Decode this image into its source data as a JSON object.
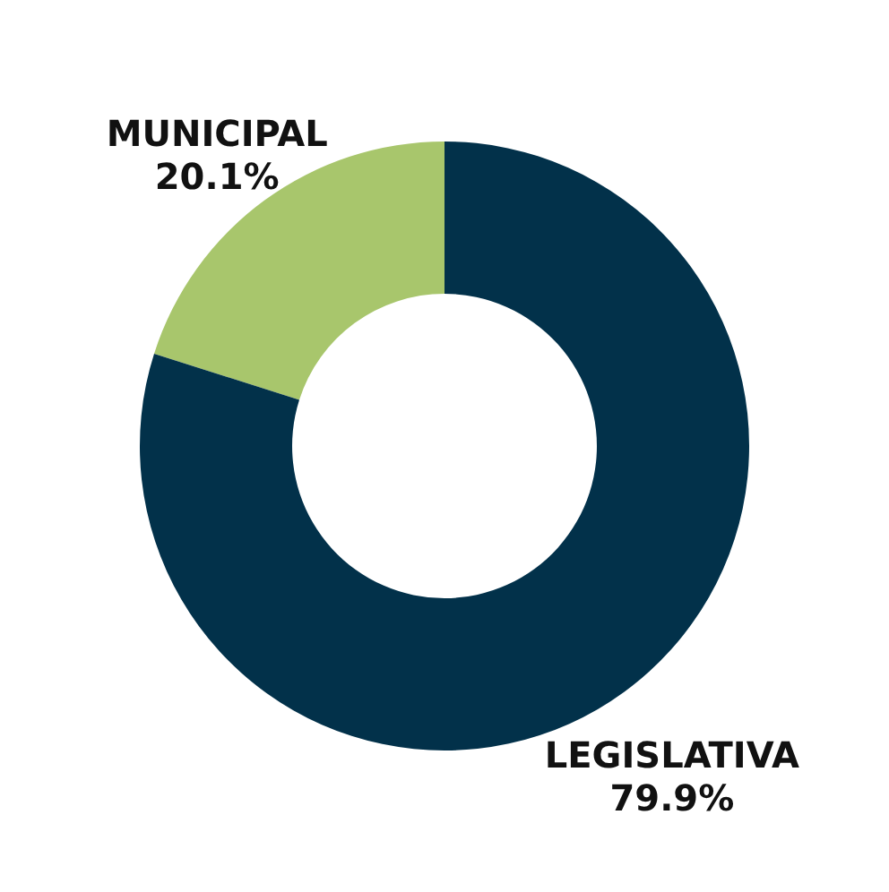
{
  "chart_data": {
    "type": "donut",
    "categories": [
      "MUNICIPAL",
      "LEGISLATIVA"
    ],
    "values": [
      20.1,
      79.9
    ],
    "colors": [
      "#a8c66c",
      "#02314a"
    ],
    "value_labels": [
      "20.1%",
      "79.9%"
    ]
  }
}
